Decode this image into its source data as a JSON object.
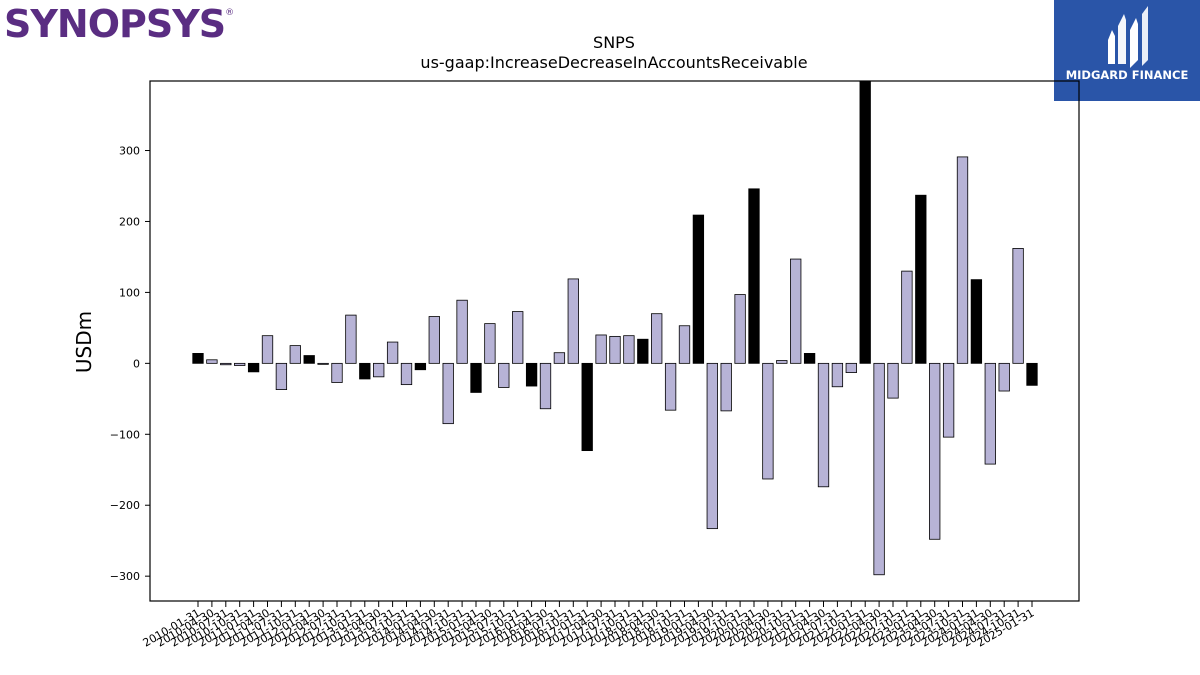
{
  "logos": {
    "left_brand": "SYNOPSYS",
    "left_mark": "®",
    "right_brand": "MIDGARD FINANCE",
    "right_icon": "midgard-monogram-icon",
    "right_bg_color": "#2a55a8",
    "left_color": "#5a2d82"
  },
  "chart_data": {
    "type": "bar",
    "title": "SNPS",
    "subtitle": "us-gaap:IncreaseDecreaseInAccountsReceivable",
    "xlabel": "",
    "ylabel": "USDm",
    "ylim": [
      -335,
      398
    ],
    "yticks": [
      -300,
      -200,
      -100,
      0,
      100,
      200,
      300
    ],
    "grid": false,
    "colors": {
      "annual": "#000000",
      "quarterly": "#b7b3d6",
      "edge": "#000000"
    },
    "categories": [
      "2010-01-31",
      "2010-04-30",
      "2010-07-31",
      "2010-10-31",
      "2011-01-31",
      "2011-04-30",
      "2011-07-31",
      "2011-10-31",
      "2012-01-31",
      "2012-04-30",
      "2012-07-31",
      "2012-10-31",
      "2013-01-31",
      "2013-04-30",
      "2013-07-31",
      "2013-10-31",
      "2014-01-31",
      "2014-04-30",
      "2014-07-31",
      "2014-10-31",
      "2015-01-31",
      "2015-04-30",
      "2015-07-31",
      "2015-10-31",
      "2016-01-31",
      "2016-04-30",
      "2016-07-31",
      "2016-10-31",
      "2017-01-31",
      "2017-04-30",
      "2017-07-31",
      "2017-10-31",
      "2018-01-31",
      "2018-04-30",
      "2018-07-31",
      "2018-10-31",
      "2019-01-31",
      "2019-04-30",
      "2019-07-31",
      "2019-10-31",
      "2020-01-31",
      "2020-04-30",
      "2020-07-31",
      "2020-10-31",
      "2021-01-31",
      "2021-04-30",
      "2021-07-31",
      "2021-10-31",
      "2022-01-31",
      "2022-04-30",
      "2022-07-31",
      "2022-10-31",
      "2023-01-31",
      "2023-04-30",
      "2023-07-31",
      "2023-10-31",
      "2024-01-31",
      "2024-04-30",
      "2024-07-31",
      "2024-10-31",
      "2025-01-31"
    ],
    "values": [
      14,
      5,
      -2,
      -3,
      -12,
      39,
      -37,
      25,
      11,
      -1,
      -27,
      68,
      -22,
      -19,
      30,
      -30,
      -9,
      66,
      -85,
      89,
      -41,
      56,
      -34,
      73,
      -32,
      -64,
      15,
      119,
      -123,
      40,
      38,
      39,
      34,
      70,
      -66,
      53,
      209,
      -233,
      -67,
      97,
      246,
      -163,
      4,
      147,
      14,
      -174,
      -33,
      -13,
      398,
      -298,
      -49,
      130,
      237,
      -248,
      -104,
      291,
      118,
      -142,
      -39,
      162,
      -31
    ],
    "annual_flags": [
      1,
      0,
      0,
      0,
      1,
      0,
      0,
      0,
      1,
      0,
      0,
      0,
      1,
      0,
      0,
      0,
      1,
      0,
      0,
      0,
      1,
      0,
      0,
      0,
      1,
      0,
      0,
      0,
      1,
      0,
      0,
      0,
      1,
      0,
      0,
      0,
      1,
      0,
      0,
      0,
      1,
      0,
      0,
      0,
      1,
      0,
      0,
      0,
      1,
      0,
      0,
      0,
      1,
      0,
      0,
      0,
      1,
      0,
      0,
      0,
      1
    ]
  }
}
